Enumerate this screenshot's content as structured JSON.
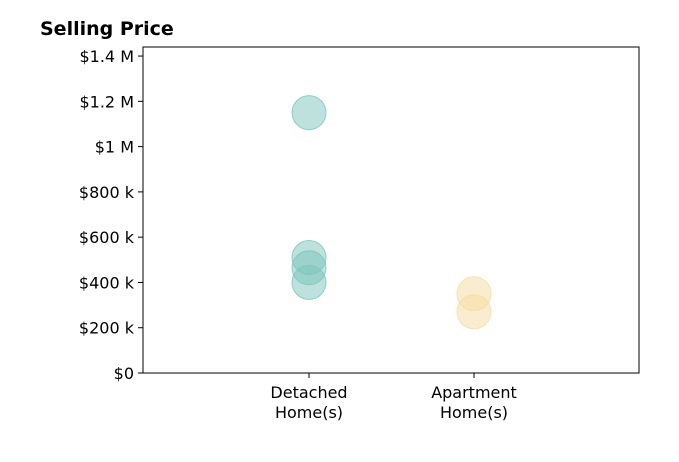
{
  "chart_data": {
    "type": "scatter",
    "title": "Selling Price",
    "xlabel": "",
    "ylabel": "",
    "categories": [
      "Detached|Home(s)",
      "Apartment|Home(s)"
    ],
    "ylim": [
      0,
      1440000
    ],
    "yticks": [
      0,
      200000,
      400000,
      600000,
      800000,
      1000000,
      1200000,
      1400000
    ],
    "ytick_labels": [
      "$0",
      "$200 k",
      "$400 k",
      "$600 k",
      "$800 k",
      "$1 M",
      "$1.2 M",
      "$1.4 M"
    ],
    "grid": false,
    "series": [
      {
        "category": "Detached|Home(s)",
        "values": [
          1150000,
          510000,
          465000,
          400000
        ],
        "color": "#7cc4bb"
      },
      {
        "category": "Apartment|Home(s)",
        "values": [
          350000,
          270000
        ],
        "color": "#f5dca0"
      }
    ]
  }
}
